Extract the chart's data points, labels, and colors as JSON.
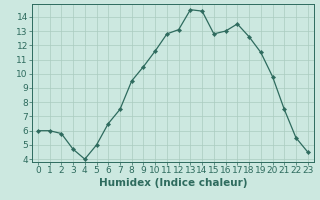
{
  "x": [
    0,
    1,
    2,
    3,
    4,
    5,
    6,
    7,
    8,
    9,
    10,
    11,
    12,
    13,
    14,
    15,
    16,
    17,
    18,
    19,
    20,
    21,
    22,
    23
  ],
  "y": [
    6.0,
    6.0,
    5.8,
    4.7,
    4.0,
    5.0,
    6.5,
    7.5,
    9.5,
    10.5,
    11.6,
    12.8,
    13.1,
    14.5,
    14.4,
    12.8,
    13.0,
    13.5,
    12.6,
    11.5,
    9.8,
    7.5,
    5.5,
    4.5
  ],
  "xlabel": "Humidex (Indice chaleur)",
  "xlim": [
    -0.5,
    23.5
  ],
  "ylim": [
    3.8,
    14.9
  ],
  "yticks": [
    4,
    5,
    6,
    7,
    8,
    9,
    10,
    11,
    12,
    13,
    14
  ],
  "xtick_labels": [
    "0",
    "1",
    "2",
    "3",
    "4",
    "5",
    "6",
    "7",
    "8",
    "9",
    "10",
    "11",
    "12",
    "13",
    "14",
    "15",
    "16",
    "17",
    "18",
    "19",
    "20",
    "21",
    "22",
    "23"
  ],
  "line_color": "#2e6b5e",
  "bg_color": "#cce8e0",
  "grid_color": "#aaccbf",
  "label_fontsize": 7.5,
  "tick_fontsize": 6.5
}
